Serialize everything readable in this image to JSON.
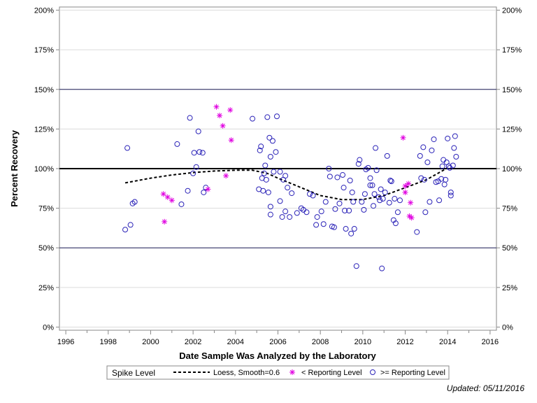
{
  "chart_data": {
    "type": "scatter",
    "title": "",
    "xlabel": "Date Sample Was Analyzed by the Laboratory",
    "ylabel": "Percent Recovery",
    "xlim": [
      1995.7,
      2016.3
    ],
    "ylim": [
      -2,
      202
    ],
    "x_ticks": [
      1996,
      1998,
      2000,
      2002,
      2004,
      2006,
      2008,
      2010,
      2012,
      2014,
      2016
    ],
    "x_tick_labels": [
      "1996",
      "1998",
      "2000",
      "2002",
      "2004",
      "2006",
      "2008",
      "2010",
      "2012",
      "2014",
      "2016"
    ],
    "y_ticks": [
      0,
      25,
      50,
      75,
      100,
      125,
      150,
      175,
      200
    ],
    "y_tick_labels": [
      "0%",
      "25%",
      "50%",
      "75%",
      "100%",
      "125%",
      "150%",
      "175%",
      "200%"
    ],
    "reference_lines": [
      {
        "y": 100,
        "style": "solid-thick"
      },
      {
        "y": 150,
        "style": "solid"
      },
      {
        "y": 50,
        "style": "solid"
      }
    ],
    "grid": true,
    "legend": {
      "title": "Spike Level",
      "placement": "bottom",
      "entries": [
        {
          "label": "Loess, Smooth=0.6",
          "symbol": "dashed-line"
        },
        {
          "label": "< Reporting Level",
          "symbol": "star"
        },
        {
          "label": ">= Reporting Level",
          "symbol": "circle"
        }
      ]
    },
    "colors": {
      "circle": "#2b23b8",
      "star": "#e000e0",
      "loess": "#000000",
      "grid": "#dcdcdc"
    },
    "series": [
      {
        "name": "Loess, Smooth=0.6",
        "type": "line",
        "points": [
          [
            1998.8,
            91
          ],
          [
            2000,
            94
          ],
          [
            2001,
            96
          ],
          [
            2002,
            97.5
          ],
          [
            2003,
            98.5
          ],
          [
            2004,
            99
          ],
          [
            2004.8,
            99
          ],
          [
            2005.5,
            97
          ],
          [
            2006,
            94
          ],
          [
            2007,
            88.5
          ],
          [
            2008,
            83
          ],
          [
            2009,
            80.5
          ],
          [
            2010,
            80.5
          ],
          [
            2011,
            83
          ],
          [
            2012,
            88
          ],
          [
            2013,
            93
          ],
          [
            2014,
            100.5
          ]
        ]
      },
      {
        "name": "< Reporting Level",
        "type": "star",
        "points": [
          [
            2000.6,
            84
          ],
          [
            2000.65,
            66.5
          ],
          [
            2000.8,
            82
          ],
          [
            2001,
            80
          ],
          [
            2002.7,
            87
          ],
          [
            2003.1,
            139
          ],
          [
            2003.25,
            133.5
          ],
          [
            2003.4,
            127
          ],
          [
            2003.55,
            95.5
          ],
          [
            2003.75,
            137
          ],
          [
            2003.8,
            118
          ],
          [
            2011.9,
            119.5
          ],
          [
            2012,
            89
          ],
          [
            2012,
            85
          ],
          [
            2012.15,
            90.5
          ],
          [
            2012.2,
            70
          ],
          [
            2012.25,
            78.5
          ],
          [
            2012.3,
            69
          ]
        ]
      },
      {
        "name": ">= Reporting Level",
        "type": "circle",
        "points": [
          [
            1998.8,
            61.5
          ],
          [
            1998.9,
            113
          ],
          [
            1999.05,
            64.5
          ],
          [
            1999.15,
            78
          ],
          [
            1999.25,
            79
          ],
          [
            2001.25,
            115.5
          ],
          [
            2001.45,
            77.5
          ],
          [
            2001.75,
            86
          ],
          [
            2001.85,
            132
          ],
          [
            2002,
            97
          ],
          [
            2002.05,
            110
          ],
          [
            2002.15,
            101
          ],
          [
            2002.25,
            123.5
          ],
          [
            2002.3,
            110.5
          ],
          [
            2002.45,
            110
          ],
          [
            2002.5,
            85
          ],
          [
            2002.6,
            88
          ],
          [
            2004.8,
            131.5
          ],
          [
            2005.1,
            87
          ],
          [
            2005.15,
            111.5
          ],
          [
            2005.2,
            114
          ],
          [
            2005.25,
            94
          ],
          [
            2005.3,
            86
          ],
          [
            2005.35,
            97
          ],
          [
            2005.4,
            102
          ],
          [
            2005.45,
            93
          ],
          [
            2005.5,
            132.5
          ],
          [
            2005.55,
            85
          ],
          [
            2005.6,
            119.5
          ],
          [
            2005.65,
            107.5
          ],
          [
            2005.65,
            76
          ],
          [
            2005.65,
            71
          ],
          [
            2005.75,
            117.5
          ],
          [
            2005.8,
            98
          ],
          [
            2005.9,
            110.5
          ],
          [
            2005.95,
            133
          ],
          [
            2006.1,
            79.5
          ],
          [
            2006.1,
            98
          ],
          [
            2006.2,
            69.5
          ],
          [
            2006.25,
            93
          ],
          [
            2006.35,
            95.5
          ],
          [
            2006.35,
            73
          ],
          [
            2006.45,
            88
          ],
          [
            2006.55,
            69.5
          ],
          [
            2006.65,
            84.5
          ],
          [
            2006.9,
            72
          ],
          [
            2007.1,
            75
          ],
          [
            2007.2,
            74
          ],
          [
            2007.35,
            72.5
          ],
          [
            2007.5,
            84
          ],
          [
            2007.65,
            83
          ],
          [
            2007.8,
            64.5
          ],
          [
            2007.85,
            69.5
          ],
          [
            2008.05,
            73
          ],
          [
            2008.15,
            65
          ],
          [
            2008.25,
            79
          ],
          [
            2008.4,
            100
          ],
          [
            2008.45,
            95
          ],
          [
            2008.55,
            63.5
          ],
          [
            2008.65,
            63
          ],
          [
            2008.7,
            74.5
          ],
          [
            2008.8,
            94.5
          ],
          [
            2008.9,
            78
          ],
          [
            2009.05,
            96
          ],
          [
            2009.1,
            88
          ],
          [
            2009.15,
            73.5
          ],
          [
            2009.2,
            62
          ],
          [
            2009.35,
            73.5
          ],
          [
            2009.4,
            92.5
          ],
          [
            2009.45,
            59
          ],
          [
            2009.5,
            85
          ],
          [
            2009.55,
            79
          ],
          [
            2009.6,
            62
          ],
          [
            2009.7,
            38.5
          ],
          [
            2009.8,
            103
          ],
          [
            2009.85,
            105.5
          ],
          [
            2009.95,
            79
          ],
          [
            2010.05,
            74
          ],
          [
            2010.1,
            84
          ],
          [
            2010.15,
            99.5
          ],
          [
            2010.25,
            100.5
          ],
          [
            2010.35,
            89.5
          ],
          [
            2010.35,
            94
          ],
          [
            2010.45,
            89.5
          ],
          [
            2010.5,
            76.5
          ],
          [
            2010.55,
            84
          ],
          [
            2010.6,
            113
          ],
          [
            2010.65,
            99
          ],
          [
            2010.75,
            82
          ],
          [
            2010.8,
            80
          ],
          [
            2010.85,
            87
          ],
          [
            2010.95,
            81
          ],
          [
            2010.9,
            37
          ],
          [
            2011.05,
            85
          ],
          [
            2011.15,
            108
          ],
          [
            2011.25,
            78.5
          ],
          [
            2011.3,
            92.5
          ],
          [
            2011.35,
            92
          ],
          [
            2011.5,
            81
          ],
          [
            2011.45,
            67.5
          ],
          [
            2011.55,
            65.5
          ],
          [
            2011.65,
            72.5
          ],
          [
            2011.75,
            80
          ],
          [
            2012.55,
            60
          ],
          [
            2012.7,
            108
          ],
          [
            2012.75,
            94
          ],
          [
            2012.85,
            113.5
          ],
          [
            2012.9,
            93
          ],
          [
            2012.95,
            72.5
          ],
          [
            2013.05,
            104
          ],
          [
            2013.15,
            79
          ],
          [
            2013.25,
            111.5
          ],
          [
            2013.35,
            118.5
          ],
          [
            2013.45,
            91.5
          ],
          [
            2013.55,
            92
          ],
          [
            2013.6,
            80
          ],
          [
            2013.7,
            93.5
          ],
          [
            2013.75,
            101.5
          ],
          [
            2013.8,
            105.5
          ],
          [
            2013.85,
            90
          ],
          [
            2013.9,
            93
          ],
          [
            2013.95,
            104
          ],
          [
            2014,
            119
          ],
          [
            2014.05,
            101.5
          ],
          [
            2014.1,
            100.5
          ],
          [
            2014.15,
            85
          ],
          [
            2014.15,
            83
          ],
          [
            2014.25,
            102
          ],
          [
            2014.3,
            113
          ],
          [
            2014.35,
            120.5
          ],
          [
            2014.4,
            107.5
          ]
        ]
      }
    ]
  },
  "footer": {
    "updated": "Updated: 05/11/2016"
  }
}
